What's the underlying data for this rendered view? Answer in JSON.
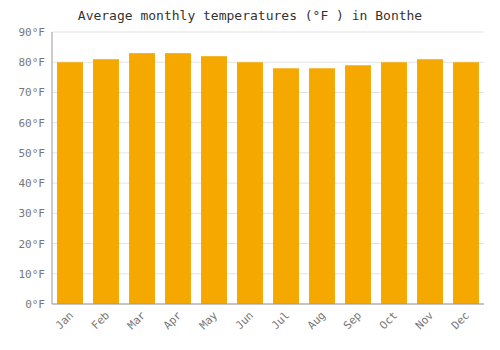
{
  "chart_data": {
    "type": "bar",
    "title": "Average monthly temperatures (°F ) in Bonthe",
    "categories": [
      "Jan",
      "Feb",
      "Mar",
      "Apr",
      "May",
      "Jun",
      "Jul",
      "Aug",
      "Sep",
      "Oct",
      "Nov",
      "Dec"
    ],
    "values": [
      80,
      81,
      83,
      83,
      82,
      80,
      78,
      78,
      79,
      80,
      81,
      80
    ],
    "color": "#F5A800",
    "ylim": [
      0,
      90
    ],
    "yticks": [
      {
        "value": 0,
        "label": "0°F"
      },
      {
        "value": 10,
        "label": "10°F"
      },
      {
        "value": 20,
        "label": "20°F"
      },
      {
        "value": 30,
        "label": "30°F"
      },
      {
        "value": 40,
        "label": "40°F"
      },
      {
        "value": 50,
        "label": "50°F"
      },
      {
        "value": 60,
        "label": "60°F"
      },
      {
        "value": 70,
        "label": "70°F"
      },
      {
        "value": 80,
        "label": "80°F"
      },
      {
        "value": 90,
        "label": "90°F"
      }
    ],
    "grid": true
  }
}
